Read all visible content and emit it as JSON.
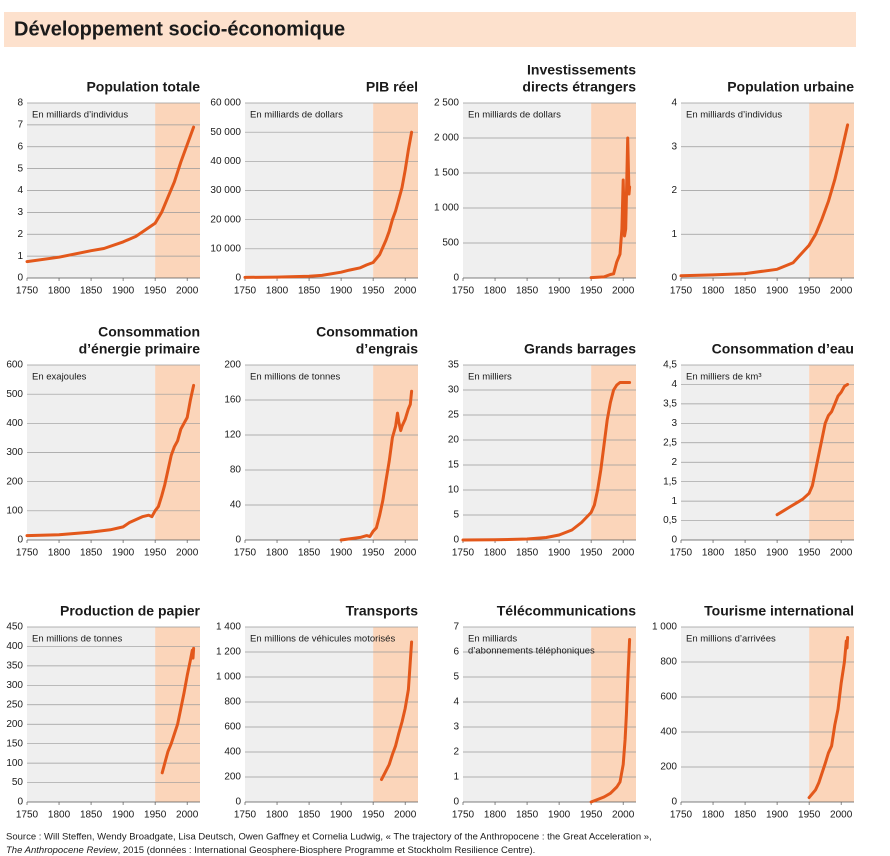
{
  "title": "Développement socio-économique",
  "source": [
    "Source : Will Steffen, Wendy Broadgate, Lisa Deutsch, Owen Gaffney et Cornelia Ludwig, « The trajectory of the Anthropocene : the Great Acceleration »,",
    "The Anthropocene Review",
    ", 2015 (données : International Geosphere-Biosphere Programme et Stockholm Resilience Centre)."
  ],
  "chart_data": [
    {
      "type": "line",
      "title": [
        "Population  totale"
      ],
      "unit": [
        "En milliards d’individus"
      ],
      "color": "#e3581b",
      "grid": true,
      "highlight_from": 1950,
      "x": [
        1750,
        1800,
        1850,
        1870,
        1900,
        1920,
        1950,
        1960,
        1970,
        1980,
        1990,
        2000,
        2010
      ],
      "values": [
        0.75,
        0.95,
        1.25,
        1.35,
        1.65,
        1.9,
        2.5,
        3.0,
        3.7,
        4.4,
        5.3,
        6.1,
        6.9
      ],
      "xlim": [
        1750,
        2020
      ],
      "xticks": [
        1750,
        1800,
        1850,
        1900,
        1950,
        2000
      ],
      "ylim": [
        0,
        8
      ],
      "yticks": [
        0,
        1,
        2,
        3,
        4,
        5,
        6,
        7,
        8
      ]
    },
    {
      "type": "line",
      "title": [
        "PIB réel"
      ],
      "unit": [
        "En milliards de dollars"
      ],
      "color": "#e3581b",
      "grid": true,
      "highlight_from": 1950,
      "x": [
        1750,
        1800,
        1820,
        1850,
        1870,
        1900,
        1913,
        1930,
        1940,
        1950,
        1960,
        1970,
        1975,
        1980,
        1985,
        1990,
        1995,
        2000,
        2005,
        2010
      ],
      "values": [
        200,
        300,
        400,
        600,
        900,
        2000,
        2700,
        3500,
        4500,
        5300,
        8000,
        13000,
        16000,
        20000,
        23000,
        27000,
        31000,
        37000,
        44000,
        50000
      ],
      "xlim": [
        1750,
        2020
      ],
      "xticks": [
        1750,
        1800,
        1850,
        1900,
        1950,
        2000
      ],
      "ylim": [
        0,
        60000
      ],
      "yticks": [
        0,
        {
          "value": 10000,
          "label": "10 000"
        },
        {
          "value": 20000,
          "label": "20 000"
        },
        {
          "value": 30000,
          "label": "30 000"
        },
        {
          "value": 40000,
          "label": "40 000"
        },
        {
          "value": 50000,
          "label": "50 000"
        },
        {
          "value": 60000,
          "label": "60 000"
        }
      ]
    },
    {
      "type": "line",
      "title": [
        "Investissements",
        "directs étrangers"
      ],
      "unit": [
        "En milliards de dollars"
      ],
      "color": "#e3581b",
      "grid": true,
      "highlight_from": 1950,
      "x": [
        1950,
        1960,
        1970,
        1980,
        1985,
        1990,
        1995,
        1998,
        2000,
        2002,
        2004,
        2007,
        2009,
        2010
      ],
      "values": [
        5,
        10,
        15,
        50,
        60,
        230,
        340,
        700,
        1400,
        600,
        700,
        2000,
        1200,
        1300
      ],
      "xlim": [
        1750,
        2020
      ],
      "xticks": [
        1750,
        1800,
        1850,
        1900,
        1950,
        2000
      ],
      "ylim": [
        0,
        2500
      ],
      "yticks": [
        0,
        500,
        {
          "value": 1000,
          "label": "1 000"
        },
        {
          "value": 1500,
          "label": "1 500"
        },
        {
          "value": 2000,
          "label": "2 000"
        },
        {
          "value": 2500,
          "label": "2 500"
        }
      ]
    },
    {
      "type": "line",
      "title": [
        "Population urbaine"
      ],
      "unit": [
        "En milliards d’individus"
      ],
      "color": "#e3581b",
      "grid": true,
      "highlight_from": 1950,
      "x": [
        1750,
        1800,
        1850,
        1900,
        1925,
        1950,
        1960,
        1970,
        1980,
        1990,
        2000,
        2010
      ],
      "values": [
        0.05,
        0.07,
        0.1,
        0.2,
        0.35,
        0.75,
        1.0,
        1.35,
        1.75,
        2.25,
        2.85,
        3.5
      ],
      "xlim": [
        1750,
        2020
      ],
      "xticks": [
        1750,
        1800,
        1850,
        1900,
        1950,
        2000
      ],
      "ylim": [
        0,
        4
      ],
      "yticks": [
        0,
        1,
        2,
        3,
        4
      ]
    },
    {
      "type": "line",
      "title": [
        "Consommation",
        "d’énergie primaire"
      ],
      "unit": [
        "En exajoules"
      ],
      "color": "#e3581b",
      "grid": true,
      "highlight_from": 1950,
      "x": [
        1750,
        1800,
        1850,
        1880,
        1900,
        1910,
        1920,
        1930,
        1940,
        1945,
        1950,
        1955,
        1960,
        1965,
        1970,
        1975,
        1980,
        1985,
        1990,
        1995,
        2000,
        2005,
        2010
      ],
      "values": [
        15,
        18,
        27,
        35,
        45,
        60,
        70,
        80,
        85,
        80,
        100,
        115,
        150,
        190,
        240,
        290,
        320,
        340,
        380,
        400,
        420,
        480,
        530
      ],
      "xlim": [
        1750,
        2020
      ],
      "xticks": [
        1750,
        1800,
        1850,
        1900,
        1950,
        2000
      ],
      "ylim": [
        0,
        600
      ],
      "yticks": [
        0,
        100,
        200,
        300,
        400,
        500,
        600
      ]
    },
    {
      "type": "line",
      "title": [
        "Consommation",
        "d’engrais"
      ],
      "unit": [
        "En millions de tonnes"
      ],
      "color": "#e3581b",
      "grid": true,
      "highlight_from": 1950,
      "x": [
        1900,
        1910,
        1920,
        1930,
        1940,
        1945,
        1950,
        1955,
        1960,
        1965,
        1970,
        1975,
        1980,
        1985,
        1988,
        1990,
        1993,
        1995,
        2000,
        2005,
        2008,
        2010
      ],
      "values": [
        0,
        1,
        2,
        3,
        5,
        4,
        10,
        14,
        28,
        45,
        68,
        90,
        117,
        130,
        145,
        135,
        125,
        130,
        138,
        150,
        155,
        170
      ],
      "xlim": [
        1750,
        2020
      ],
      "xticks": [
        1750,
        1800,
        1850,
        1900,
        1950,
        2000
      ],
      "ylim": [
        0,
        200
      ],
      "yticks": [
        0,
        40,
        80,
        120,
        160,
        200
      ]
    },
    {
      "type": "line",
      "title": [
        "Grands barrages"
      ],
      "unit": [
        "En milliers"
      ],
      "color": "#e3581b",
      "grid": true,
      "highlight_from": 1950,
      "x": [
        1750,
        1800,
        1850,
        1880,
        1900,
        1920,
        1935,
        1950,
        1955,
        1960,
        1965,
        1970,
        1975,
        1980,
        1985,
        1990,
        1995,
        2010
      ],
      "values": [
        0,
        0.05,
        0.2,
        0.5,
        1,
        2,
        3.5,
        5.5,
        7,
        10,
        14,
        19,
        24,
        27.5,
        30,
        31,
        31.5,
        31.5
      ],
      "xlim": [
        1750,
        2020
      ],
      "xticks": [
        1750,
        1800,
        1850,
        1900,
        1950,
        2000
      ],
      "ylim": [
        0,
        35
      ],
      "yticks": [
        0,
        5,
        10,
        15,
        20,
        25,
        30,
        35
      ]
    },
    {
      "type": "line",
      "title": [
        "Consommation d’eau"
      ],
      "unit": [
        "En milliers de km³"
      ],
      "color": "#e3581b",
      "grid": true,
      "highlight_from": 1950,
      "x": [
        1900,
        1910,
        1920,
        1930,
        1940,
        1950,
        1955,
        1960,
        1965,
        1970,
        1975,
        1980,
        1985,
        1990,
        1995,
        2000,
        2005,
        2010
      ],
      "values": [
        0.65,
        0.75,
        0.85,
        0.95,
        1.05,
        1.2,
        1.4,
        1.8,
        2.2,
        2.6,
        3.0,
        3.2,
        3.3,
        3.5,
        3.7,
        3.8,
        3.95,
        4.0
      ],
      "xlim": [
        1750,
        2020
      ],
      "xticks": [
        1750,
        1800,
        1850,
        1900,
        1950,
        2000
      ],
      "ylim": [
        0,
        4.5
      ],
      "yticks": [
        0,
        {
          "value": 0.5,
          "label": "0,5"
        },
        1,
        {
          "value": 1.5,
          "label": "1,5"
        },
        2,
        {
          "value": 2.5,
          "label": "2,5"
        },
        3,
        {
          "value": 3.5,
          "label": "3,5"
        },
        4,
        {
          "value": 4.5,
          "label": "4,5"
        }
      ]
    },
    {
      "type": "line",
      "title": [
        "Production  de papier"
      ],
      "unit": [
        "En millions de tonnes"
      ],
      "color": "#e3581b",
      "grid": true,
      "highlight_from": 1950,
      "x": [
        1961,
        1965,
        1970,
        1975,
        1980,
        1985,
        1990,
        1995,
        2000,
        2005,
        2008,
        2009,
        2010
      ],
      "values": [
        75,
        100,
        130,
        150,
        175,
        200,
        240,
        280,
        325,
        365,
        390,
        370,
        395
      ],
      "xlim": [
        1750,
        2020
      ],
      "xticks": [
        1750,
        1800,
        1850,
        1900,
        1950,
        2000
      ],
      "ylim": [
        0,
        450
      ],
      "yticks": [
        0,
        50,
        100,
        150,
        200,
        250,
        300,
        350,
        400,
        450
      ]
    },
    {
      "type": "line",
      "title": [
        "Transports"
      ],
      "unit": [
        "En millions de véhicules motorisés"
      ],
      "color": "#e3581b",
      "grid": true,
      "highlight_from": 1950,
      "x": [
        1963,
        1970,
        1975,
        1980,
        1985,
        1990,
        1995,
        2000,
        2005,
        2010
      ],
      "values": [
        180,
        250,
        300,
        380,
        450,
        550,
        640,
        750,
        900,
        1280
      ],
      "xlim": [
        1750,
        2020
      ],
      "xticks": [
        1750,
        1800,
        1850,
        1900,
        1950,
        2000
      ],
      "ylim": [
        0,
        1400
      ],
      "yticks": [
        0,
        200,
        400,
        600,
        800,
        {
          "value": 1000,
          "label": "1 000"
        },
        {
          "value": 1200,
          "label": "1 200"
        },
        {
          "value": 1400,
          "label": "1 400"
        }
      ]
    },
    {
      "type": "line",
      "title": [
        "Télécommunications"
      ],
      "unit": [
        "En milliards",
        "d’abonnements téléphoniques"
      ],
      "color": "#e3581b",
      "grid": true,
      "highlight_from": 1950,
      "x": [
        1950,
        1960,
        1970,
        1980,
        1990,
        1995,
        2000,
        2003,
        2005,
        2007,
        2010
      ],
      "values": [
        0,
        0.1,
        0.2,
        0.35,
        0.6,
        0.8,
        1.5,
        2.5,
        3.5,
        4.8,
        6.5
      ],
      "xlim": [
        1750,
        2020
      ],
      "xticks": [
        1750,
        1800,
        1850,
        1900,
        1950,
        2000
      ],
      "ylim": [
        0,
        7
      ],
      "yticks": [
        0,
        1,
        2,
        3,
        4,
        5,
        6,
        7
      ]
    },
    {
      "type": "line",
      "title": [
        "Tourisme international"
      ],
      "unit": [
        "En millions d’arrivées"
      ],
      "color": "#e3581b",
      "grid": true,
      "highlight_from": 1950,
      "x": [
        1950,
        1960,
        1965,
        1970,
        1975,
        1980,
        1985,
        1990,
        1995,
        2000,
        2005,
        2008,
        2009,
        2010
      ],
      "values": [
        25,
        70,
        110,
        165,
        220,
        280,
        320,
        440,
        530,
        680,
        800,
        920,
        880,
        940
      ],
      "xlim": [
        1750,
        2020
      ],
      "xticks": [
        1750,
        1800,
        1850,
        1900,
        1950,
        2000
      ],
      "ylim": [
        0,
        1000
      ],
      "yticks": [
        0,
        200,
        400,
        600,
        800,
        {
          "value": 1000,
          "label": "1 000"
        }
      ]
    }
  ]
}
